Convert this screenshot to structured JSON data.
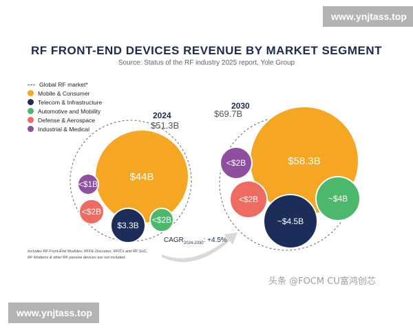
{
  "watermarks": {
    "top": "www.ynjtass.top",
    "bottom": "www.ynjtass.top"
  },
  "chart_data": {
    "type": "bubble",
    "title": "RF FRONT-END DEVICES REVENUE BY MARKET SEGMENT",
    "subtitle": "Source: Status of the RF industry 2025 report, Yole Group",
    "legend": [
      {
        "name": "Global RF market*",
        "style": "dashed",
        "color": "#666666"
      },
      {
        "name": "Mobile & Consumer",
        "color": "#f5a623"
      },
      {
        "name": "Telecom & Infrastructure",
        "color": "#1c2d5a"
      },
      {
        "name": "Automotive and Mobility",
        "color": "#4cb86b"
      },
      {
        "name": "Defense & Aerospace",
        "color": "#ee6b62"
      },
      {
        "name": "Industrial & Medical",
        "color": "#8e4f9e"
      }
    ],
    "years": [
      {
        "year": "2024",
        "total_label": "$51.3B",
        "total": 51.3,
        "segments": [
          {
            "name": "Mobile & Consumer",
            "label": "$44B",
            "value": 44
          },
          {
            "name": "Telecom & Infrastructure",
            "label": "$3.3B",
            "value": 3.3
          },
          {
            "name": "Automotive and Mobility",
            "label": "<$2B",
            "value": 2
          },
          {
            "name": "Defense & Aerospace",
            "label": "<$2B",
            "value": 2
          },
          {
            "name": "Industrial & Medical",
            "label": "<$1B",
            "value": 1
          }
        ]
      },
      {
        "year": "2030",
        "total_label": "$69.7B",
        "total": 69.7,
        "segments": [
          {
            "name": "Mobile & Consumer",
            "label": "$58.3B",
            "value": 58.3
          },
          {
            "name": "Telecom & Infrastructure",
            "label": "~$4.5B",
            "value": 4.5
          },
          {
            "name": "Automotive and Mobility",
            "label": "~$4B",
            "value": 4
          },
          {
            "name": "Defense & Aerospace",
            "label": "<$2B",
            "value": 2
          },
          {
            "name": "Industrial & Medical",
            "label": "<$2B",
            "value": 2
          }
        ]
      }
    ],
    "cagr": {
      "prefix": "CAGR",
      "subscript": "2024-2030",
      "suffix": ": +4.5%"
    }
  },
  "footnote": [
    "Includes RF Front-End Modules, RFFE Discretes, RFICs and RF SoC,",
    "RF Modems & other RF passive devices are not included."
  ],
  "credit": "头条 @FOCM CU富鸿创芯"
}
